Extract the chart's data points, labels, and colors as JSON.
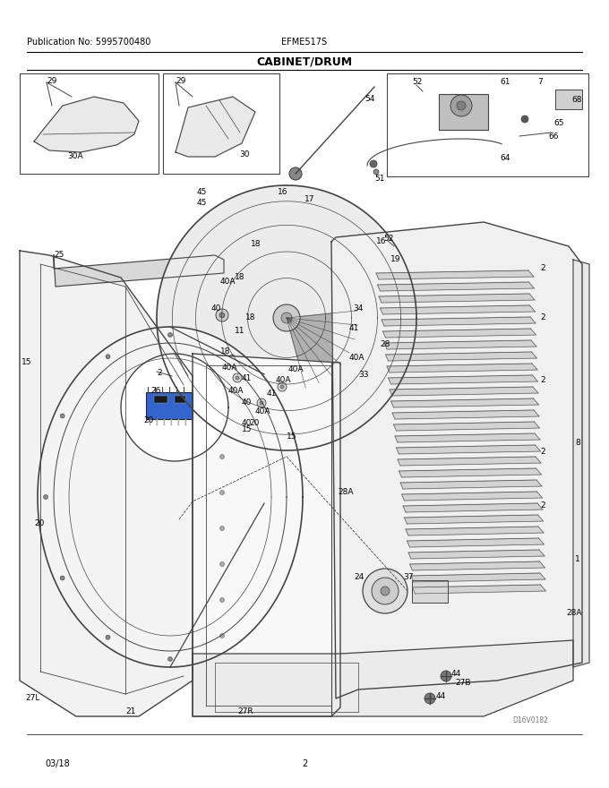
{
  "pub_no": "Publication No: 5995700480",
  "model": "EFME517S",
  "section": "CABINET/DRUM",
  "date": "03/18",
  "page": "2",
  "diagram_id": "D16V0182",
  "bg_color": "#ffffff",
  "text_color": "#000000",
  "line_color": "#444444",
  "fig_width": 6.8,
  "fig_height": 8.8,
  "dpi": 100
}
